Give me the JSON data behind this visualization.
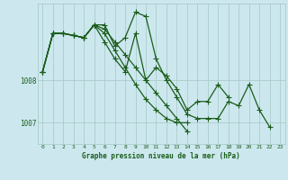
{
  "bg_color": "#cce8ee",
  "grid_color": "#aacccc",
  "line_color": "#1a5c1a",
  "marker": "+",
  "markersize": 4,
  "linewidth": 0.9,
  "xlabel": "Graphe pression niveau de la mer (hPa)",
  "yticks": [
    1007,
    1008
  ],
  "ylim": [
    1006.5,
    1009.8
  ],
  "xlim": [
    -0.5,
    23.5
  ],
  "series": [
    [
      1008.2,
      1009.1,
      1009.1,
      1009.05,
      1009.0,
      1009.3,
      1009.3,
      1008.8,
      1009.0,
      1009.6,
      1009.5,
      1008.5,
      1008.0,
      1007.6,
      1007.2,
      1007.1,
      1007.1,
      1007.1,
      1007.5,
      1007.4,
      1007.9,
      1007.3,
      1006.9,
      null
    ],
    [
      1008.2,
      1009.1,
      1009.1,
      1009.05,
      1009.0,
      1009.3,
      1008.9,
      1008.5,
      1008.2,
      1009.1,
      1008.0,
      1008.3,
      1008.1,
      1007.8,
      1007.3,
      1007.5,
      1007.5,
      1007.9,
      1007.6,
      null,
      null,
      null,
      null,
      null
    ],
    [
      1008.2,
      1009.1,
      1009.1,
      1009.05,
      1009.0,
      1009.3,
      1009.1,
      1008.7,
      1008.3,
      1007.9,
      1007.55,
      1007.3,
      1007.1,
      1007.0,
      1007.0,
      null,
      null,
      null,
      null,
      null,
      null,
      null,
      null,
      null
    ],
    [
      1008.2,
      1009.1,
      1009.1,
      1009.05,
      1009.0,
      1009.3,
      1009.2,
      1008.9,
      1008.6,
      1008.3,
      1008.0,
      1007.7,
      1007.4,
      1007.1,
      1006.8,
      null,
      null,
      null,
      null,
      null,
      null,
      null,
      null,
      null
    ]
  ]
}
